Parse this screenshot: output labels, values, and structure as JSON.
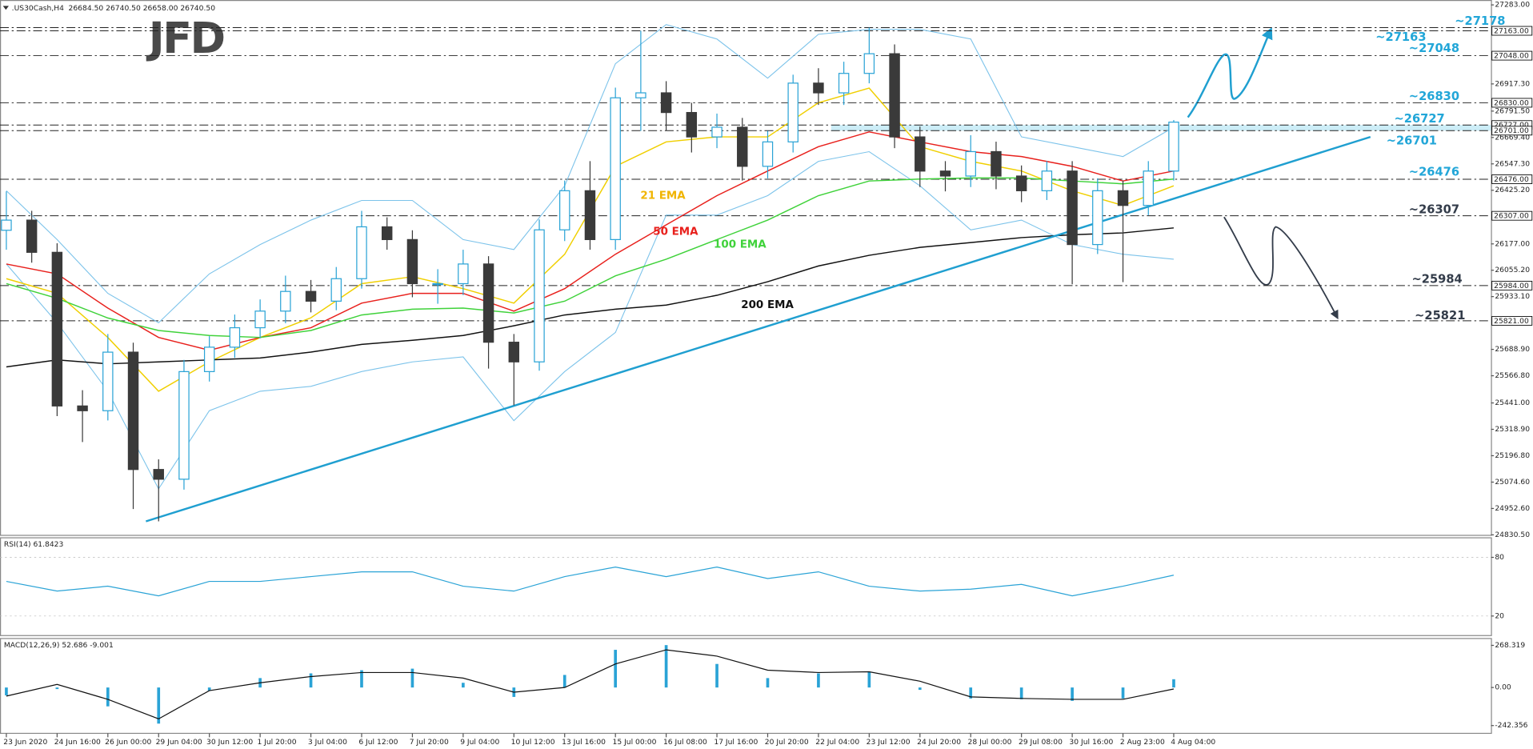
{
  "header": {
    "symbol": ".US30Cash,H4",
    "quote": "26684.50 26740.50 26658.00 26740.50"
  },
  "logo": "JFD",
  "chart_data": [
    {
      "type": "candlestick",
      "x": [
        0,
        4,
        8,
        12,
        16,
        20,
        24,
        28,
        32,
        36,
        40,
        44,
        48,
        52,
        56,
        60,
        64,
        68,
        72,
        76,
        80,
        84,
        88,
        92,
        96,
        100,
        104,
        108,
        112,
        116,
        120,
        124,
        128,
        132,
        136,
        140,
        144,
        148,
        152,
        156,
        160,
        164,
        168,
        172,
        176,
        180,
        184
      ],
      "open": [
        26240,
        26287,
        26138,
        25427,
        25405,
        25676,
        25133,
        25088,
        25586,
        25699,
        25789,
        25866,
        25957,
        25912,
        26016,
        26256,
        26197,
        25993,
        25993,
        26084,
        25722,
        25631,
        26242,
        26423,
        26197,
        26853,
        26876,
        26785,
        26672,
        26717,
        26536,
        26649,
        26921,
        26876,
        26966,
        27057,
        26672,
        26514,
        26491,
        26604,
        26491,
        26423,
        26514,
        26174,
        26423,
        26355,
        26514
      ],
      "high": [
        26420,
        26330,
        26180,
        25500,
        25760,
        25720,
        25180,
        25640,
        25750,
        25850,
        25920,
        26030,
        26010,
        26070,
        26330,
        26300,
        26240,
        26060,
        26150,
        26120,
        25760,
        26290,
        26470,
        26560,
        26900,
        27163,
        26930,
        26830,
        26780,
        26760,
        26700,
        26960,
        26990,
        27020,
        27178,
        27100,
        26720,
        26560,
        26680,
        26650,
        26540,
        26560,
        26560,
        26480,
        26470,
        26560,
        26750
      ],
      "low": [
        26150,
        26090,
        25380,
        25260,
        25360,
        24950,
        24893,
        25040,
        25540,
        25650,
        25740,
        25810,
        25860,
        25870,
        25970,
        26150,
        25930,
        25900,
        25940,
        25600,
        25430,
        25590,
        26190,
        26150,
        26150,
        26700,
        26700,
        26600,
        26620,
        26470,
        26480,
        26600,
        26820,
        26820,
        26920,
        26620,
        26440,
        26420,
        26440,
        26430,
        26370,
        26380,
        25990,
        26130,
        26000,
        26310,
        26470
      ],
      "close": [
        26287,
        26138,
        25427,
        25405,
        25676,
        25133,
        25088,
        25586,
        25699,
        25789,
        25866,
        25957,
        25912,
        26016,
        26256,
        26197,
        25993,
        25993,
        26084,
        25722,
        25631,
        26242,
        26423,
        26197,
        26853,
        26876,
        26785,
        26672,
        26717,
        26536,
        26649,
        26921,
        26876,
        26966,
        27057,
        26672,
        26514,
        26491,
        26604,
        26491,
        26423,
        26514,
        26174,
        26423,
        26355,
        26514,
        26740.5
      ],
      "up_color": "#2aa3d6",
      "down_color": "#3a3a3a",
      "xlim": [
        -1,
        234
      ],
      "xticks": [
        {
          "value": 0,
          "label": "23 Jun 2020"
        },
        {
          "value": 8,
          "label": "24 Jun 16:00"
        },
        {
          "value": 16,
          "label": "26 Jun 00:00"
        },
        {
          "value": 24,
          "label": "29 Jun 04:00"
        },
        {
          "value": 32,
          "label": "30 Jun 12:00"
        },
        {
          "value": 40,
          "label": "1 Jul 20:00"
        },
        {
          "value": 48,
          "label": "3 Jul 04:00"
        },
        {
          "value": 56,
          "label": "6 Jul 12:00"
        },
        {
          "value": 64,
          "label": "7 Jul 20:00"
        },
        {
          "value": 72,
          "label": "9 Jul 04:00"
        },
        {
          "value": 80,
          "label": "10 Jul 12:00"
        },
        {
          "value": 88,
          "label": "13 Jul 16:00"
        },
        {
          "value": 96,
          "label": "15 Jul 00:00"
        },
        {
          "value": 104,
          "label": "16 Jul 08:00"
        },
        {
          "value": 112,
          "label": "17 Jul 16:00"
        },
        {
          "value": 120,
          "label": "20 Jul 20:00"
        },
        {
          "value": 128,
          "label": "22 Jul 04:00"
        },
        {
          "value": 136,
          "label": "23 Jul 12:00"
        },
        {
          "value": 144,
          "label": "24 Jul 20:00"
        },
        {
          "value": 152,
          "label": "28 Jul 00:00"
        },
        {
          "value": 160,
          "label": "29 Jul 08:00"
        },
        {
          "value": 168,
          "label": "30 Jul 16:00"
        },
        {
          "value": 176,
          "label": "2 Aug 23:00"
        },
        {
          "value": 184,
          "label": "4 Aug 04:00"
        }
      ],
      "ylim": [
        24830.5,
        27283
      ],
      "yticks": [
        {
          "value": 27283,
          "label": "27283.00"
        },
        {
          "value": 26917.3,
          "label": "26917.30"
        },
        {
          "value": 26791.5,
          "label": "26791.50"
        },
        {
          "value": 26669.4,
          "label": "26669.40"
        },
        {
          "value": 26547.3,
          "label": "26547.30"
        },
        {
          "value": 26425.2,
          "label": "26425.20"
        },
        {
          "value": 26177,
          "label": "26177.00"
        },
        {
          "value": 26055.2,
          "label": "26055.20"
        },
        {
          "value": 25933.1,
          "label": "25933.10"
        },
        {
          "value": 25688.9,
          "label": "25688.90"
        },
        {
          "value": 25566.8,
          "label": "25566.80"
        },
        {
          "value": 25441,
          "label": "25441.00"
        },
        {
          "value": 25318.9,
          "label": "25318.90"
        },
        {
          "value": 25196.8,
          "label": "25196.80"
        },
        {
          "value": 25074.6,
          "label": "25074.60"
        },
        {
          "value": 24952.6,
          "label": "24952.60"
        },
        {
          "value": 24830.5,
          "label": "24830.50"
        }
      ],
      "lines": [
        {
          "name": "21 EMA",
          "color": "#f0cf00",
          "x": [
            0,
            8,
            16,
            24,
            32,
            40,
            48,
            56,
            64,
            72,
            80,
            88,
            96,
            104,
            112,
            120,
            128,
            136,
            144,
            152,
            160,
            168,
            176,
            184
          ],
          "values": [
            26016,
            25948,
            25744,
            25495,
            25631,
            25744,
            25835,
            25993,
            26025,
            25970,
            25903,
            26129,
            26536,
            26649,
            26672,
            26672,
            26830,
            26898,
            26627,
            26559,
            26514,
            26423,
            26355,
            26446
          ]
        },
        {
          "name": "50 EMA",
          "color": "#e8201c",
          "x": [
            0,
            8,
            16,
            24,
            32,
            40,
            48,
            56,
            64,
            72,
            80,
            88,
            96,
            104,
            112,
            120,
            128,
            136,
            144,
            152,
            160,
            168,
            176,
            184
          ],
          "values": [
            26084,
            26038,
            25880,
            25744,
            25685,
            25744,
            25789,
            25903,
            25948,
            25948,
            25866,
            25970,
            26129,
            26265,
            26400,
            26514,
            26627,
            26695,
            26649,
            26604,
            26581,
            26536,
            26468,
            26514
          ]
        },
        {
          "name": "100 EMA",
          "color": "#3fd23a",
          "x": [
            0,
            8,
            16,
            24,
            32,
            40,
            48,
            56,
            64,
            72,
            80,
            88,
            96,
            104,
            112,
            120,
            128,
            136,
            144,
            152,
            160,
            168,
            176,
            184
          ],
          "values": [
            25993,
            25925,
            25834,
            25776,
            25753,
            25744,
            25776,
            25848,
            25875,
            25880,
            25857,
            25912,
            26029,
            26106,
            26197,
            26287,
            26400,
            26468,
            26477,
            26482,
            26482,
            26468,
            26455,
            26477
          ]
        },
        {
          "name": "200 EMA",
          "color": "#111111",
          "x": [
            0,
            8,
            16,
            24,
            32,
            40,
            48,
            56,
            64,
            72,
            80,
            88,
            96,
            104,
            112,
            120,
            128,
            136,
            144,
            152,
            160,
            168,
            176,
            184
          ],
          "values": [
            25608,
            25640,
            25622,
            25631,
            25640,
            25649,
            25676,
            25712,
            25731,
            25753,
            25798,
            25848,
            25875,
            25894,
            25939,
            26002,
            26075,
            26124,
            26161,
            26183,
            26206,
            26219,
            26228,
            26251
          ]
        }
      ],
      "bands": [
        {
          "color": "#7cc3ea",
          "x": [
            0,
            8,
            16,
            24,
            32,
            40,
            48,
            56,
            64,
            72,
            80,
            88,
            96,
            104,
            112,
            120,
            128,
            136,
            144,
            152,
            160,
            168,
            176,
            184
          ],
          "values": [
            26423,
            26197,
            25948,
            25812,
            26038,
            26174,
            26287,
            26378,
            26378,
            26197,
            26151,
            26446,
            27011,
            27192,
            27125,
            26944,
            27147,
            27170,
            27170,
            27125,
            26672,
            26627,
            26581,
            26717
          ]
        },
        {
          "color": "#7cc3ea",
          "x": [
            0,
            8,
            16,
            24,
            32,
            40,
            48,
            56,
            64,
            72,
            80,
            88,
            96,
            104,
            112,
            120,
            128,
            136,
            144,
            152,
            160,
            168,
            176,
            184
          ],
          "values": [
            26084,
            25812,
            25495,
            25043,
            25405,
            25495,
            25518,
            25586,
            25631,
            25654,
            25359,
            25586,
            25767,
            26310,
            26310,
            26400,
            26559,
            26604,
            26446,
            26242,
            26287,
            26174,
            26129,
            26106
          ]
        }
      ],
      "trendline": {
        "color": "#1f9fd0",
        "x": [
          22,
          215
        ],
        "values": [
          24893,
          26672
        ]
      },
      "zone": {
        "color": "#bfe8f5",
        "x": [
          130,
          234
        ],
        "values": [
          26701,
          26727
        ]
      },
      "levels": [
        {
          "value": 27178,
          "label": "~27178",
          "color": "#22a6d8"
        },
        {
          "value": 27163,
          "label": "~27163",
          "box": "27163.00",
          "color": "#22a6d8"
        },
        {
          "value": 27048,
          "label": "~27048",
          "box": "27048.00",
          "color": "#22a6d8"
        },
        {
          "value": 26830,
          "label": "~26830",
          "box": "26830.00",
          "color": "#22a6d8"
        },
        {
          "value": 26727,
          "label": "~26727",
          "box": "26727.00",
          "color": "#22a6d8"
        },
        {
          "value": 26701,
          "label": "~26701",
          "box": "26701.00",
          "color": "#22a6d8"
        },
        {
          "value": 26476,
          "label": "~26476",
          "box": "26476.00",
          "color": "#22a6d8"
        },
        {
          "value": 26307,
          "label": "~26307",
          "box": "26307.00",
          "color": "#333c4a"
        },
        {
          "value": 25984,
          "label": "~25984",
          "box": "25984.00",
          "color": "#333c4a"
        },
        {
          "value": 25821,
          "label": "~25821",
          "box": "25821.00",
          "color": "#333c4a"
        }
      ]
    },
    {
      "type": "line",
      "title": "RSI(14) 61.8423",
      "color": "#2aa3d6",
      "x": [
        0,
        8,
        16,
        24,
        32,
        40,
        48,
        56,
        64,
        72,
        80,
        88,
        96,
        104,
        112,
        120,
        128,
        136,
        144,
        152,
        160,
        168,
        176,
        184
      ],
      "values": [
        55.4,
        45.5,
        50.5,
        40.6,
        55.4,
        55.4,
        60.3,
        65.2,
        65.2,
        50.5,
        45.5,
        60.3,
        70.1,
        60.3,
        70.1,
        58.3,
        65.2,
        50.5,
        45.5,
        47.5,
        52.4,
        40.6,
        50.5,
        61.8423
      ],
      "ylim": [
        0,
        100
      ],
      "yticks": [
        20,
        80
      ]
    },
    {
      "type": "macd",
      "title": "MACD(12,26,9) 52.686 -9.001",
      "x": [
        0,
        8,
        16,
        24,
        32,
        40,
        48,
        56,
        64,
        72,
        80,
        88,
        96,
        104,
        112,
        120,
        128,
        136,
        144,
        152,
        160,
        168,
        176,
        184
      ],
      "histogram": {
        "color": "#2aa3d6",
        "values": [
          -50,
          -10,
          -120,
          -230,
          -20,
          60,
          90,
          110,
          120,
          30,
          -60,
          80,
          240,
          270,
          150,
          60,
          90,
          100,
          -15,
          -70,
          -75,
          -85,
          -70,
          52.686
        ]
      },
      "signal": {
        "color": "#111111",
        "values": [
          -55,
          20,
          -75,
          -200,
          -20,
          30,
          70,
          95,
          95,
          60,
          -30,
          0,
          150,
          240,
          200,
          110,
          95,
          100,
          40,
          -60,
          -70,
          -75,
          -75,
          -9.001
        ]
      },
      "ylim": [
        -292,
        312
      ],
      "yticks": [
        268.319,
        {
          "value": 0,
          "label": "0.00"
        },
        -242.356
      ]
    }
  ]
}
